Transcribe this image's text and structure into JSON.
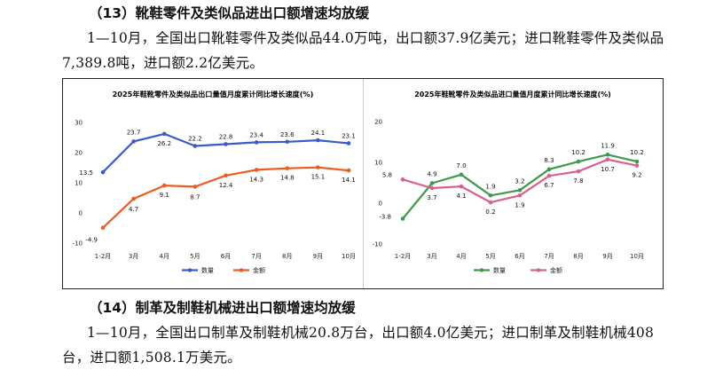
{
  "section13": {
    "heading": "（13）靴鞋零件及类似品进出口额增速均放缓",
    "paragraph": "1—10月，全国出口靴鞋零件及类似品44.0万吨，出口额37.9亿美元；进口靴鞋零件及类似品7,389.8吨，进口额2.2亿美元。"
  },
  "section14": {
    "heading": "（14）制革及制鞋机械进出口额增速均放缓",
    "paragraph": "1—10月，全国出口制革及制鞋机械20.8万台，出口额4.0亿美元；进口制革及制鞋机械408台，进口额1,508.1万美元。"
  },
  "chart_data": [
    {
      "type": "line",
      "title": "2025年鞋靴零件及类似品出口量值月度累计同比增长速度(%)",
      "categories": [
        "1-2月",
        "3月",
        "4月",
        "5月",
        "6月",
        "7月",
        "8月",
        "9月",
        "10月"
      ],
      "series": [
        {
          "name": "数量",
          "color": "#3a5bc7",
          "values": [
            13.5,
            23.7,
            26.2,
            22.2,
            22.8,
            23.4,
            23.6,
            24.1,
            23.1
          ]
        },
        {
          "name": "金额",
          "color": "#ef5a1e",
          "values": [
            -4.9,
            4.7,
            9.1,
            8.7,
            12.4,
            14.3,
            14.8,
            15.1,
            14.1
          ]
        }
      ],
      "yticks": [
        -10,
        0,
        10,
        20,
        30
      ],
      "ylim": [
        -10,
        30
      ],
      "xlabel": "",
      "ylabel": "",
      "grid": false,
      "legend": "bottom"
    },
    {
      "type": "line",
      "title": "2025年鞋靴零件及类似品进口量值月度累计同比增长速度(%)",
      "categories": [
        "1-2月",
        "3月",
        "4月",
        "5月",
        "6月",
        "7月",
        "8月",
        "9月",
        "10月"
      ],
      "series": [
        {
          "name": "数量",
          "color": "#3e9a4c",
          "values": [
            -3.8,
            4.9,
            7.0,
            1.9,
            3.2,
            8.3,
            10.2,
            11.9,
            10.2
          ]
        },
        {
          "name": "金额",
          "color": "#d9608e",
          "values": [
            5.8,
            3.7,
            4.1,
            0.2,
            1.9,
            6.7,
            7.8,
            10.7,
            9.2
          ]
        }
      ],
      "yticks": [
        -10,
        0,
        10,
        20
      ],
      "ylim": [
        -10,
        20
      ],
      "xlabel": "",
      "ylabel": "",
      "grid": false,
      "legend": "bottom"
    }
  ]
}
